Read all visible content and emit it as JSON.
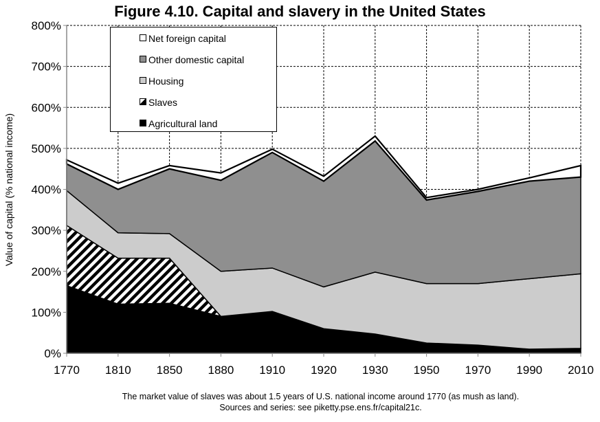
{
  "chart_data": {
    "type": "area",
    "stacked": true,
    "title": "Figure 4.10. Capital and slavery in the United States",
    "xlabel": "",
    "ylabel": "Value of capital (% national income)",
    "ylim": [
      0,
      800
    ],
    "yticks": [
      "0%",
      "100%",
      "200%",
      "300%",
      "400%",
      "500%",
      "600%",
      "700%",
      "800%"
    ],
    "ytick_values": [
      0,
      100,
      200,
      300,
      400,
      500,
      600,
      700,
      800
    ],
    "grid": true,
    "legend_position": "top-left",
    "categories": [
      "1770",
      "1810",
      "1850",
      "1880",
      "1910",
      "1920",
      "1930",
      "1950",
      "1970",
      "1990",
      "2010"
    ],
    "series": [
      {
        "name": "Agricultural land",
        "fill": "#000000",
        "values": [
          165,
          120,
          122,
          90,
          102,
          60,
          47,
          25,
          20,
          10,
          12
        ]
      },
      {
        "name": "Slaves",
        "fill": "hatch",
        "values": [
          147,
          112,
          110,
          0,
          0,
          0,
          0,
          0,
          0,
          0,
          0
        ]
      },
      {
        "name": "Housing",
        "fill": "#cccccc",
        "values": [
          85,
          62,
          60,
          110,
          106,
          102,
          151,
          145,
          150,
          172,
          182
        ]
      },
      {
        "name": "Other domestic capital",
        "fill": "#8f8f8f",
        "values": [
          65,
          106,
          158,
          222,
          282,
          258,
          320,
          204,
          225,
          238,
          236
        ]
      },
      {
        "name": "Net foreign capital",
        "fill": "#ffffff",
        "values": [
          10,
          15,
          8,
          18,
          8,
          12,
          12,
          6,
          5,
          8,
          28
        ]
      }
    ],
    "annotations": [
      "The market value of slaves was about 1.5 years of U.S. national income around 1770 (as mush as land).",
      "Sources and series: see piketty.pse.ens.fr/capital21c."
    ]
  },
  "legend": [
    {
      "label": "Net foreign capital",
      "swatch": "#ffffff"
    },
    {
      "label": "Other domestic capital",
      "swatch": "#8f8f8f"
    },
    {
      "label": "Housing",
      "swatch": "#cccccc"
    },
    {
      "label": "Slaves",
      "swatch": "hatch"
    },
    {
      "label": "Agricultural land",
      "swatch": "#000000"
    }
  ]
}
